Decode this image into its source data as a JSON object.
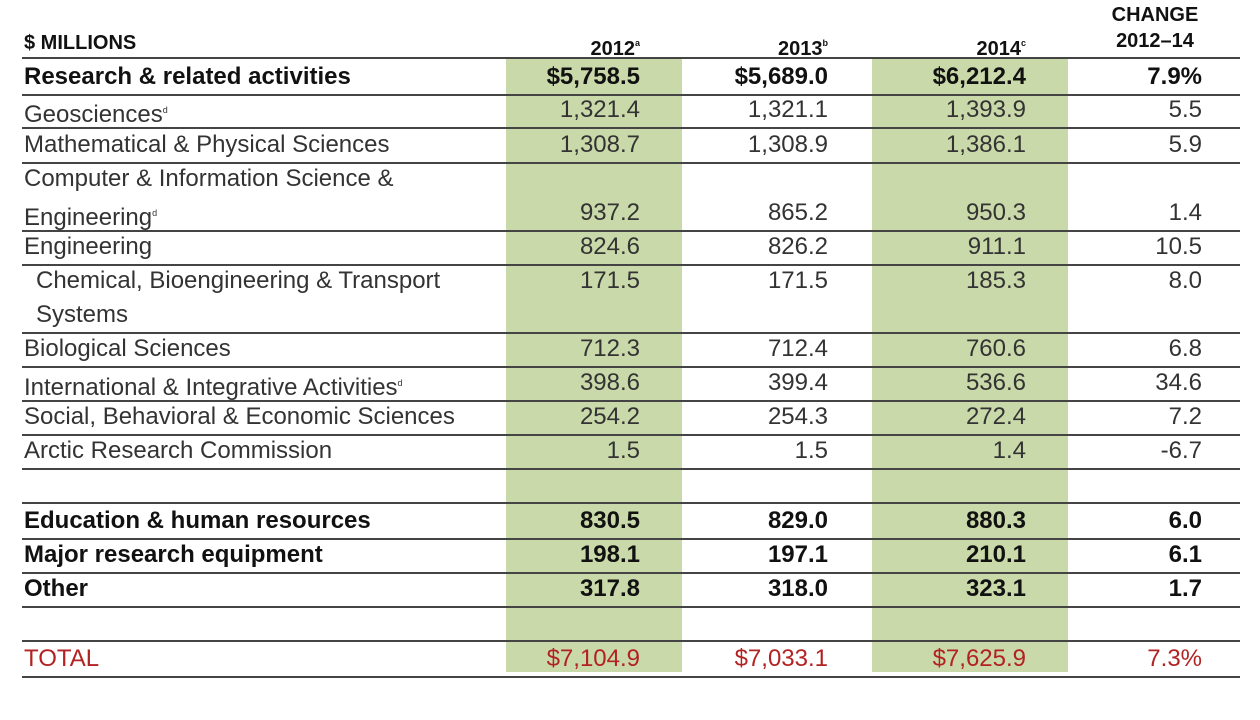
{
  "chart_data": {
    "type": "table",
    "columns": [
      "$ MILLIONS",
      "2012",
      "2013",
      "2014",
      "CHANGE 2012–14"
    ],
    "column_notes": {
      "2012": "a",
      "2013": "b",
      "2014": "c"
    },
    "rows": [
      {
        "label": "Research & related activities",
        "values": [
          "$5,758.5",
          "$5,689.0",
          "$6,212.4",
          "7.9%"
        ],
        "style": "bold"
      },
      {
        "label": "Geosciences",
        "note": "d",
        "values": [
          "1,321.4",
          "1,321.1",
          "1,393.9",
          "5.5"
        ],
        "style": "normal"
      },
      {
        "label": "Mathematical & Physical Sciences",
        "values": [
          "1,308.7",
          "1,308.9",
          "1,386.1",
          "5.9"
        ],
        "style": "normal"
      },
      {
        "label_lines": [
          "Computer & Information Science &",
          "Engineering"
        ],
        "note": "d",
        "values": [
          "937.2",
          "865.2",
          "950.3",
          "1.4"
        ],
        "style": "normal"
      },
      {
        "label": "Engineering",
        "values": [
          "824.6",
          "826.2",
          "911.1",
          "10.5"
        ],
        "style": "normal"
      },
      {
        "label_lines": [
          "Chemical, Bioengineering & Transport",
          "Systems"
        ],
        "values": [
          "171.5",
          "171.5",
          "185.3",
          "8.0"
        ],
        "style": "indent"
      },
      {
        "label": "Biological Sciences",
        "values": [
          "712.3",
          "712.4",
          "760.6",
          "6.8"
        ],
        "style": "normal"
      },
      {
        "label": "International & Integrative Activities",
        "note": "d",
        "values": [
          "398.6",
          "399.4",
          "536.6",
          "34.6"
        ],
        "style": "normal"
      },
      {
        "label": "Social, Behavioral & Economic Sciences",
        "values": [
          "254.2",
          "254.3",
          "272.4",
          "7.2"
        ],
        "style": "normal"
      },
      {
        "label": "Arctic Research Commission",
        "values": [
          "1.5",
          "1.5",
          "1.4",
          "-6.7"
        ],
        "style": "normal"
      },
      {
        "label": "Education & human resources",
        "values": [
          "830.5",
          "829.0",
          "880.3",
          "6.0"
        ],
        "style": "bold"
      },
      {
        "label": "Major research equipment",
        "values": [
          "198.1",
          "197.1",
          "210.1",
          "6.1"
        ],
        "style": "bold"
      },
      {
        "label": "Other",
        "values": [
          "317.8",
          "318.0",
          "323.1",
          "1.7"
        ],
        "style": "bold"
      },
      {
        "label": "TOTAL",
        "values": [
          "$7,104.9",
          "$7,033.1",
          "$7,625.9",
          "7.3%"
        ],
        "style": "total"
      }
    ],
    "highlighted_columns": [
      "2012",
      "2014"
    ],
    "colors": {
      "highlight": "#c9d9a9",
      "total": "#b22222",
      "text": "#333333",
      "rule": "#444444"
    }
  }
}
